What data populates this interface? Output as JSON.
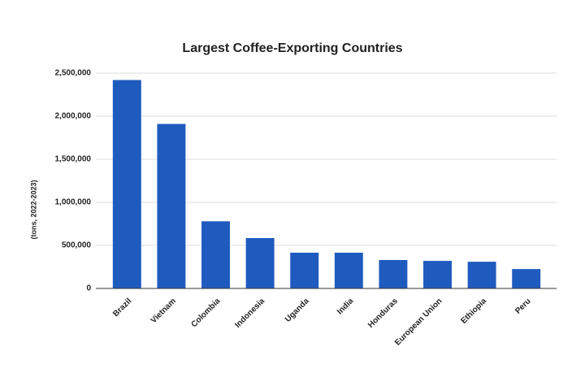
{
  "chart_data": {
    "type": "bar",
    "title": "Largest Coffee-Exporting Countries",
    "y_label": "(tons, 2022-2023)",
    "categories": [
      "Brazil",
      "Vietnam",
      "Colombia",
      "Indonesia",
      "Uganda",
      "India",
      "Honduras",
      "European Union",
      "Ethiopia",
      "Peru"
    ],
    "values": [
      2420000,
      1910000,
      780000,
      585000,
      415000,
      415000,
      330000,
      320000,
      310000,
      225000
    ],
    "color": "#1f5bbf",
    "ylim": [
      0,
      2500000
    ],
    "yticks": [
      0,
      {
        "value": 500000,
        "label": "500,000"
      },
      {
        "value": 1000000,
        "label": "1,000,000"
      },
      {
        "value": 1500000,
        "label": "1,500,000"
      },
      {
        "value": 2000000,
        "label": "2,000,000"
      },
      {
        "value": 2500000,
        "label": "2,500,000"
      }
    ],
    "grid": true
  }
}
